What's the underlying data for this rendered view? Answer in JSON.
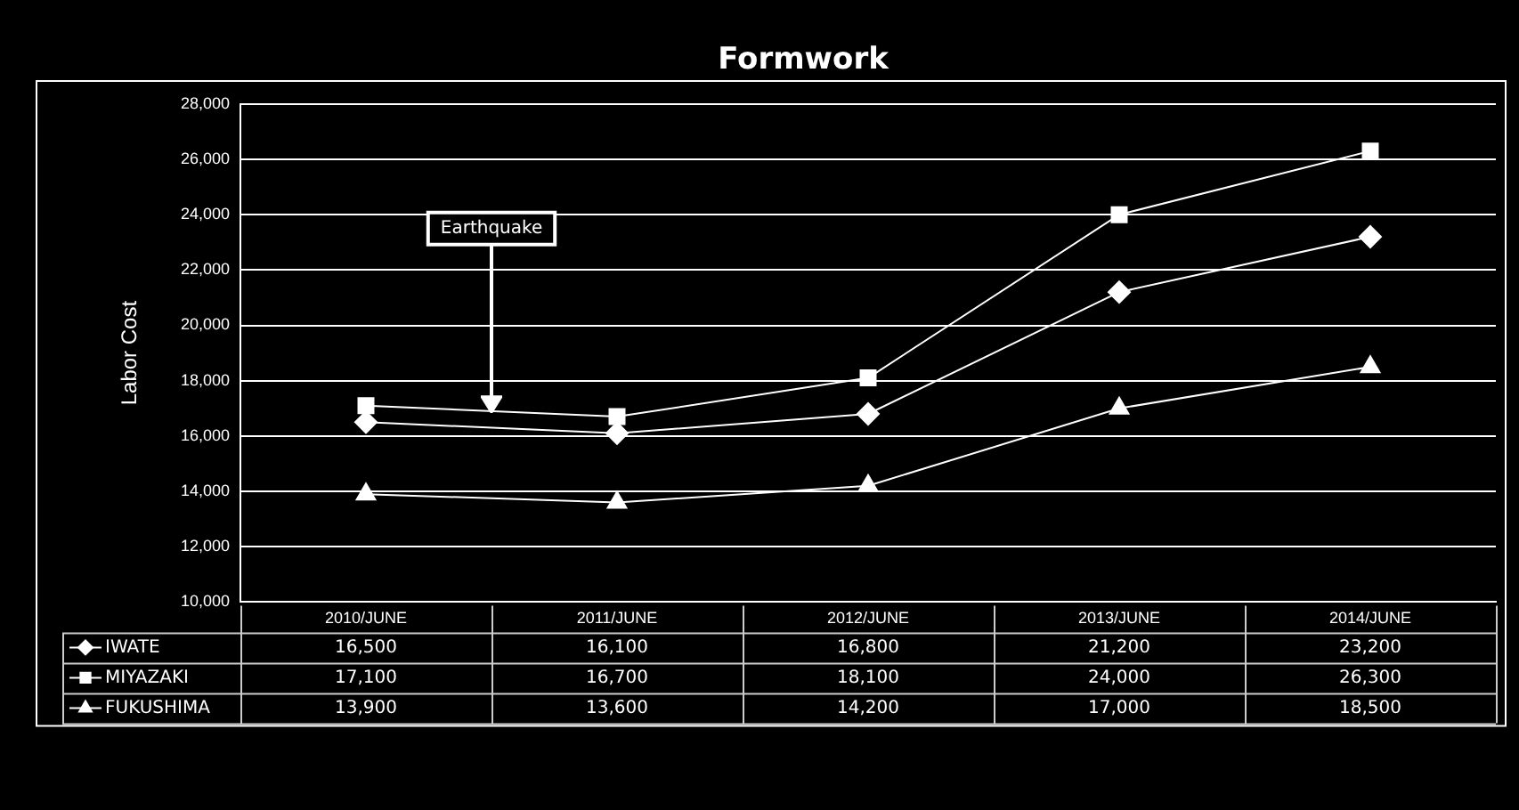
{
  "chart_data": {
    "type": "line",
    "title": "Formwork",
    "ylabel": "Labor Cost",
    "categories": [
      "2010/JUNE",
      "2011/JUNE",
      "2012/JUNE",
      "2013/JUNE",
      "2014/JUNE"
    ],
    "series": [
      {
        "name": "IWATE",
        "color": "#ffffff",
        "marker": "diamond",
        "values": [
          16500,
          16100,
          16800,
          21200,
          23200
        ],
        "value_labels": [
          "16,500",
          "16,100",
          "16,800",
          "21,200",
          "23,200"
        ]
      },
      {
        "name": "MIYAZAKI",
        "color": "#ffffff",
        "marker": "square",
        "values": [
          17100,
          16700,
          18100,
          24000,
          26300
        ],
        "value_labels": [
          "17,100",
          "16,700",
          "18,100",
          "24,000",
          "26,300"
        ]
      },
      {
        "name": "FUKUSHIMA",
        "color": "#ffffff",
        "marker": "triangle",
        "values": [
          13900,
          13600,
          14200,
          17000,
          18500
        ],
        "value_labels": [
          "13,900",
          "13,600",
          "14,200",
          "17,000",
          "18,500"
        ]
      }
    ],
    "ylim": [
      10000,
      28000
    ],
    "yticks": [
      {
        "value": 10000,
        "label": "10,000"
      },
      {
        "value": 12000,
        "label": "12,000"
      },
      {
        "value": 14000,
        "label": "14,000"
      },
      {
        "value": 16000,
        "label": "16,000"
      },
      {
        "value": 18000,
        "label": "18,000"
      },
      {
        "value": 20000,
        "label": "20,000"
      },
      {
        "value": 22000,
        "label": "22,000"
      },
      {
        "value": 24000,
        "label": "24,000"
      },
      {
        "value": 26000,
        "label": "26,000"
      },
      {
        "value": 28000,
        "label": "28,000"
      }
    ],
    "grid": "y",
    "line_style": "solid",
    "legend": "bottom left",
    "annotations": [
      "Earthquake"
    ]
  }
}
